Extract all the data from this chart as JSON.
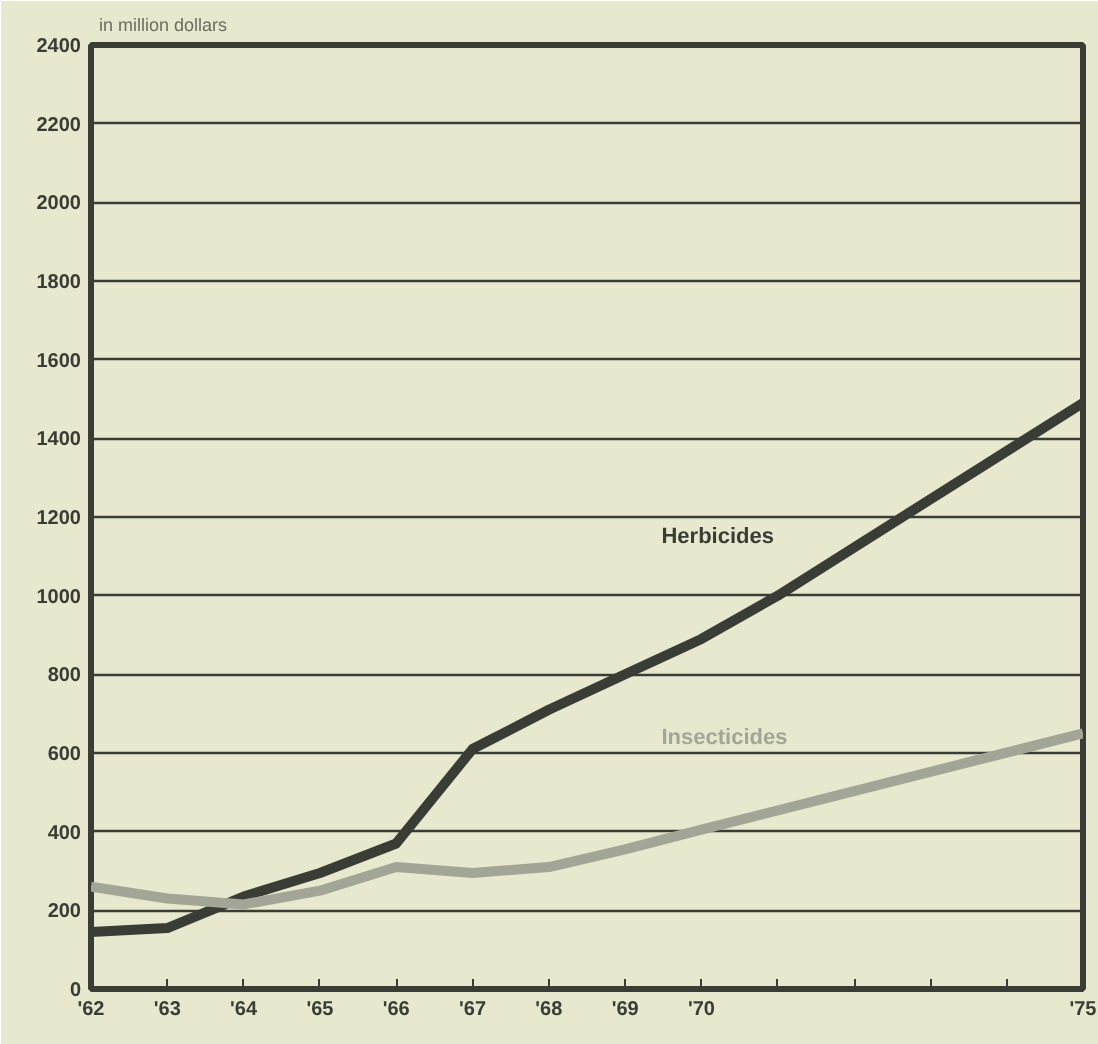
{
  "chart_data": {
    "type": "line",
    "ylabel": "in million dollars",
    "x": [
      1962,
      1963,
      1964,
      1965,
      1966,
      1967,
      1968,
      1969,
      1970,
      1975
    ],
    "series": [
      {
        "name": "Herbicides",
        "color": "#3a3d35",
        "x": [
          1962,
          1963,
          1964,
          1965,
          1966,
          1967,
          1968,
          1969,
          1970,
          1971,
          1975
        ],
        "values": [
          145,
          155,
          235,
          295,
          370,
          610,
          710,
          800,
          890,
          1000,
          1490
        ]
      },
      {
        "name": "Insecticides",
        "color": "#a3a596",
        "values": [
          260,
          230,
          215,
          250,
          310,
          295,
          310,
          355,
          405,
          650
        ]
      }
    ],
    "xlim": [
      1962,
      1975
    ],
    "ylim": [
      0,
      2400
    ],
    "xticks": [
      {
        "value": 1962,
        "label": "'62"
      },
      {
        "value": 1963,
        "label": "'63"
      },
      {
        "value": 1964,
        "label": "'64"
      },
      {
        "value": 1965,
        "label": "'65"
      },
      {
        "value": 1966,
        "label": "'66"
      },
      {
        "value": 1967,
        "label": "'67"
      },
      {
        "value": 1968,
        "label": "'68"
      },
      {
        "value": 1969,
        "label": "'69"
      },
      {
        "value": 1970,
        "label": "'70"
      },
      {
        "value": 1971,
        "label": null
      },
      {
        "value": 1972,
        "label": null
      },
      {
        "value": 1973,
        "label": null
      },
      {
        "value": 1974,
        "label": null
      },
      {
        "value": 1975,
        "label": "'75"
      }
    ],
    "yticks": [
      0,
      200,
      400,
      600,
      800,
      1000,
      1200,
      1400,
      1600,
      1800,
      2000,
      2200,
      2400
    ],
    "grid": "y",
    "legend": false,
    "line_style": "solid",
    "marker": "none"
  }
}
